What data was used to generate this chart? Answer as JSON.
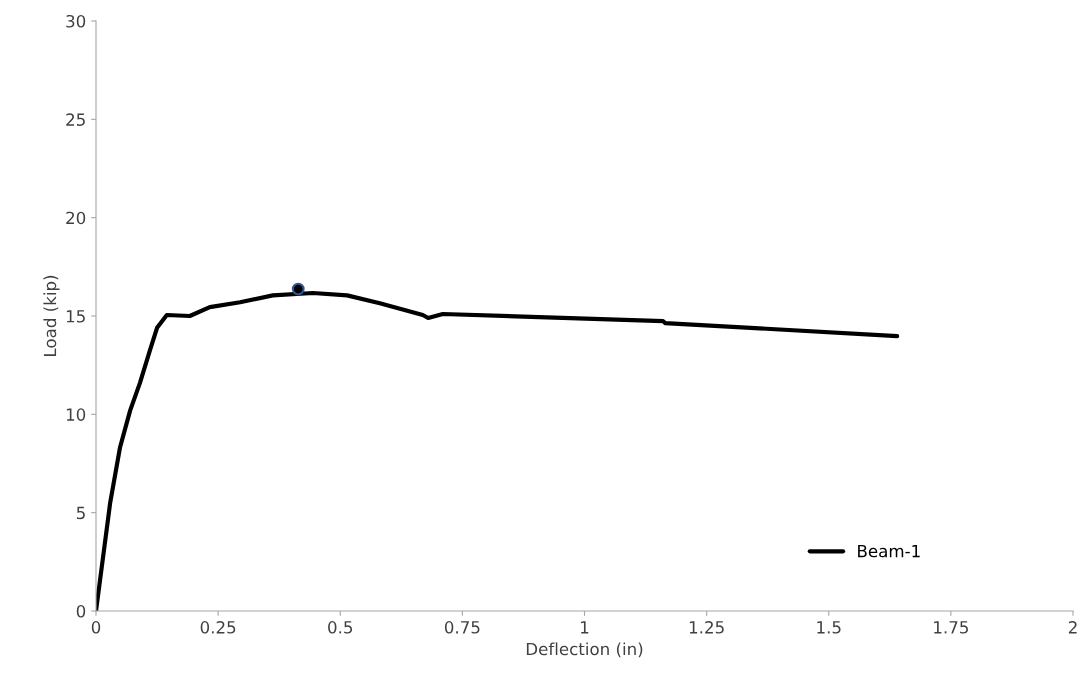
{
  "chart_data": {
    "type": "line",
    "xlabel": "Deflection (in)",
    "ylabel": "Load (kip)",
    "xlim": [
      0,
      2
    ],
    "xticks": [
      0,
      0.25,
      0.5,
      0.75,
      1,
      1.25,
      1.5,
      1.75,
      2
    ],
    "ylim": [
      0,
      30
    ],
    "yticks": [
      0,
      5,
      10,
      15,
      20,
      25,
      30
    ],
    "grid": false,
    "legend": "bottom right",
    "series": [
      {
        "name": "Beam-1",
        "color": "#000000",
        "marker": "none",
        "line_style": "solid",
        "x": [
          0,
          0.029,
          0.049,
          0.07,
          0.09,
          0.111,
          0.125,
          0.145,
          0.192,
          0.233,
          0.295,
          0.362,
          0.444,
          0.514,
          0.581,
          0.669,
          0.68,
          0.71,
          1.161,
          1.165,
          1.64
        ],
        "values": [
          0,
          5.5,
          8.3,
          10.2,
          11.6,
          13.3,
          14.4,
          15.05,
          15.0,
          15.45,
          15.7,
          16.05,
          16.17,
          16.05,
          15.65,
          15.05,
          14.9,
          15.1,
          14.74,
          14.64,
          13.98
        ]
      },
      {
        "type": "scatter",
        "color": "#000000",
        "marker": "circle",
        "x": [
          0.414
        ],
        "values": [
          16.37
        ]
      }
    ]
  }
}
